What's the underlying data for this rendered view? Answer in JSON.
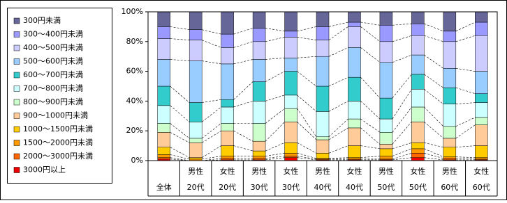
{
  "chart_data": {
    "type": "stacked_bar_100",
    "categories": [
      [
        "全体"
      ],
      [
        "男性",
        "20代"
      ],
      [
        "女性",
        "20代"
      ],
      [
        "男性",
        "30代"
      ],
      [
        "女性",
        "30代"
      ],
      [
        "男性",
        "40代"
      ],
      [
        "女性",
        "40代"
      ],
      [
        "男性",
        "50代"
      ],
      [
        "女性",
        "50代"
      ],
      [
        "男性",
        "60代"
      ],
      [
        "女性",
        "60代"
      ]
    ],
    "ylim": [
      0,
      100
    ],
    "yticks": [
      {
        "value": 0,
        "label": "0%"
      },
      {
        "value": 20,
        "label": "20%"
      },
      {
        "value": 40,
        "label": "40%"
      },
      {
        "value": 60,
        "label": "60%"
      },
      {
        "value": 80,
        "label": "80%"
      },
      {
        "value": 100,
        "label": "100%"
      }
    ],
    "legend": "left",
    "series": [
      {
        "name": "300円未満",
        "color": "#666699",
        "values": [
          10,
          12,
          15,
          11,
          13,
          10,
          7,
          9,
          8,
          13,
          7
        ]
      },
      {
        "name": "300～400円未満",
        "color": "#9999ff",
        "values": [
          8,
          7,
          9,
          9,
          4,
          9,
          3,
          11,
          8,
          7,
          9
        ]
      },
      {
        "name": "400～500円未満",
        "color": "#ccccff",
        "values": [
          14,
          14,
          11,
          12,
          14,
          11,
          14,
          14,
          13,
          18,
          24
        ]
      },
      {
        "name": "500～600円未満",
        "color": "#99ccff",
        "values": [
          18,
          28,
          24,
          15,
          9,
          20,
          20,
          24,
          13,
          13,
          15
        ]
      },
      {
        "name": "600～700円未満",
        "color": "#33cccc",
        "values": [
          13,
          13,
          5,
          13,
          16,
          17,
          16,
          14,
          10,
          11,
          6
        ]
      },
      {
        "name": "700～800円未満",
        "color": "#ccffff",
        "values": [
          12,
          11,
          11,
          15,
          9,
          17,
          12,
          9,
          12,
          15,
          10
        ]
      },
      {
        "name": "800～900円未満",
        "color": "#ccffcc",
        "values": [
          6,
          3,
          5,
          12,
          9,
          2,
          6,
          8,
          10,
          8,
          5
        ]
      },
      {
        "name": "900～1000円未満",
        "color": "#ffcc99",
        "values": [
          10,
          10,
          10,
          6.5,
          14,
          9,
          12,
          3,
          14,
          6,
          14
        ]
      },
      {
        "name": "1000～1500円未満",
        "color": "#ffcc00",
        "values": [
          5,
          1,
          7,
          3.5,
          7,
          3.5,
          8,
          5,
          4,
          6.5,
          8
        ]
      },
      {
        "name": "1500～2000円未満",
        "color": "#ff9900",
        "values": [
          2,
          1,
          1.5,
          1.5,
          2,
          0.5,
          1,
          2,
          3,
          1,
          1
        ]
      },
      {
        "name": "2000～3000円未満",
        "color": "#ff6600",
        "values": [
          1,
          0,
          1,
          1,
          1,
          0.5,
          0.5,
          0.5,
          3,
          1,
          0.5
        ]
      },
      {
        "name": "3000円以上",
        "color": "#ee0000",
        "values": [
          1,
          0,
          0.5,
          0.5,
          2,
          0.5,
          0.5,
          0.5,
          2,
          0.5,
          0.5
        ]
      }
    ]
  }
}
